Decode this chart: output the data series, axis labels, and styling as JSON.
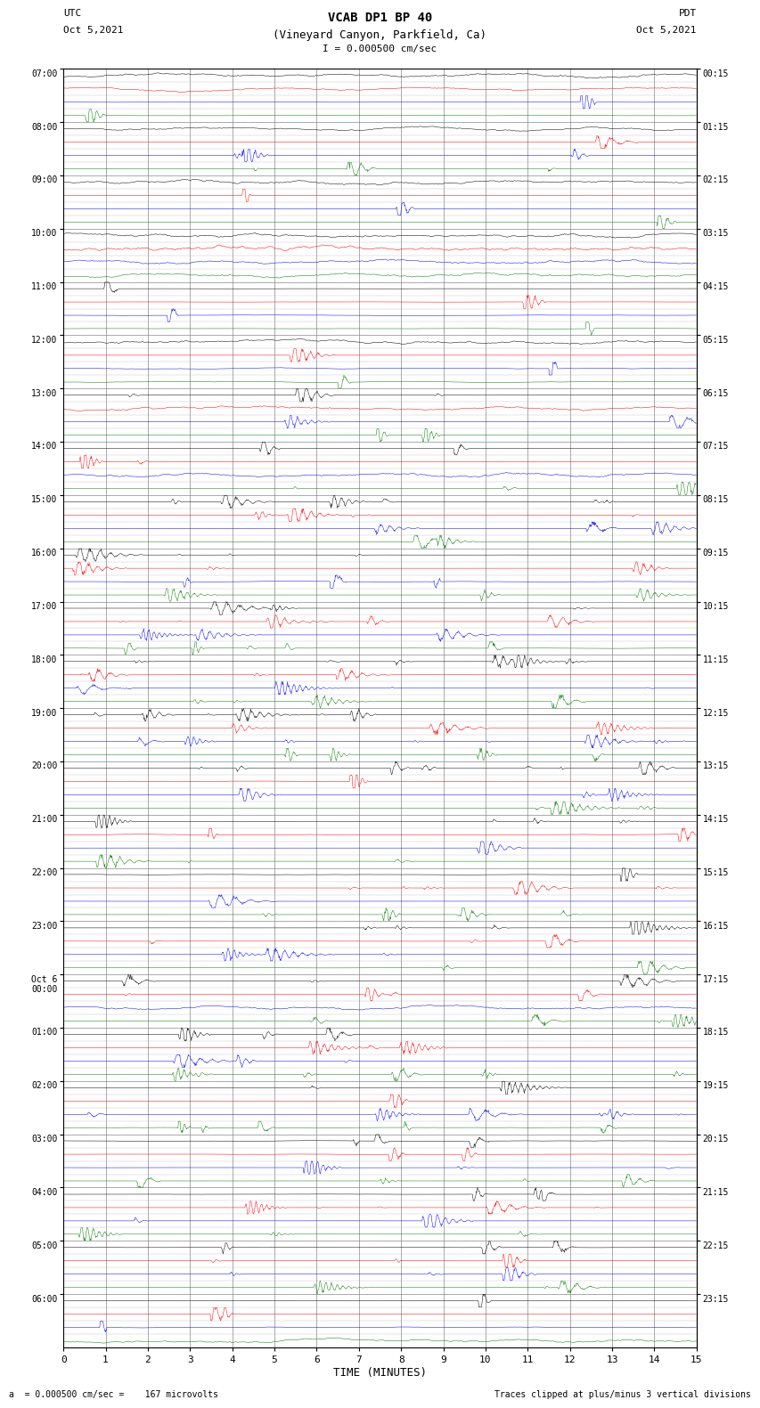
{
  "title_line1": "VCAB DP1 BP 40",
  "title_line2": "(Vineyard Canyon, Parkfield, Ca)",
  "scale_label": "I = 0.000500 cm/sec",
  "xlabel": "TIME (MINUTES)",
  "footer_left": "a  = 0.000500 cm/sec =    167 microvolts",
  "footer_right": "Traces clipped at plus/minus 3 vertical divisions",
  "left_times": [
    "07:00",
    "08:00",
    "09:00",
    "10:00",
    "11:00",
    "12:00",
    "13:00",
    "14:00",
    "15:00",
    "16:00",
    "17:00",
    "18:00",
    "19:00",
    "20:00",
    "21:00",
    "22:00",
    "23:00",
    "Oct 6\n00:00",
    "01:00",
    "02:00",
    "03:00",
    "04:00",
    "05:00",
    "06:00"
  ],
  "right_times": [
    "00:15",
    "01:15",
    "02:15",
    "03:15",
    "04:15",
    "05:15",
    "06:15",
    "07:15",
    "08:15",
    "09:15",
    "10:15",
    "11:15",
    "12:15",
    "13:15",
    "14:15",
    "15:15",
    "16:15",
    "17:15",
    "18:15",
    "19:15",
    "20:15",
    "21:15",
    "22:15",
    "23:15"
  ],
  "n_rows": 24,
  "n_traces_per_row": 4,
  "colors": [
    "black",
    "red",
    "blue",
    "green"
  ],
  "bg_color": "white",
  "grid_color": "#888888",
  "xmin": 0,
  "xmax": 15,
  "minutes_ticks": [
    0,
    1,
    2,
    3,
    4,
    5,
    6,
    7,
    8,
    9,
    10,
    11,
    12,
    13,
    14,
    15
  ]
}
